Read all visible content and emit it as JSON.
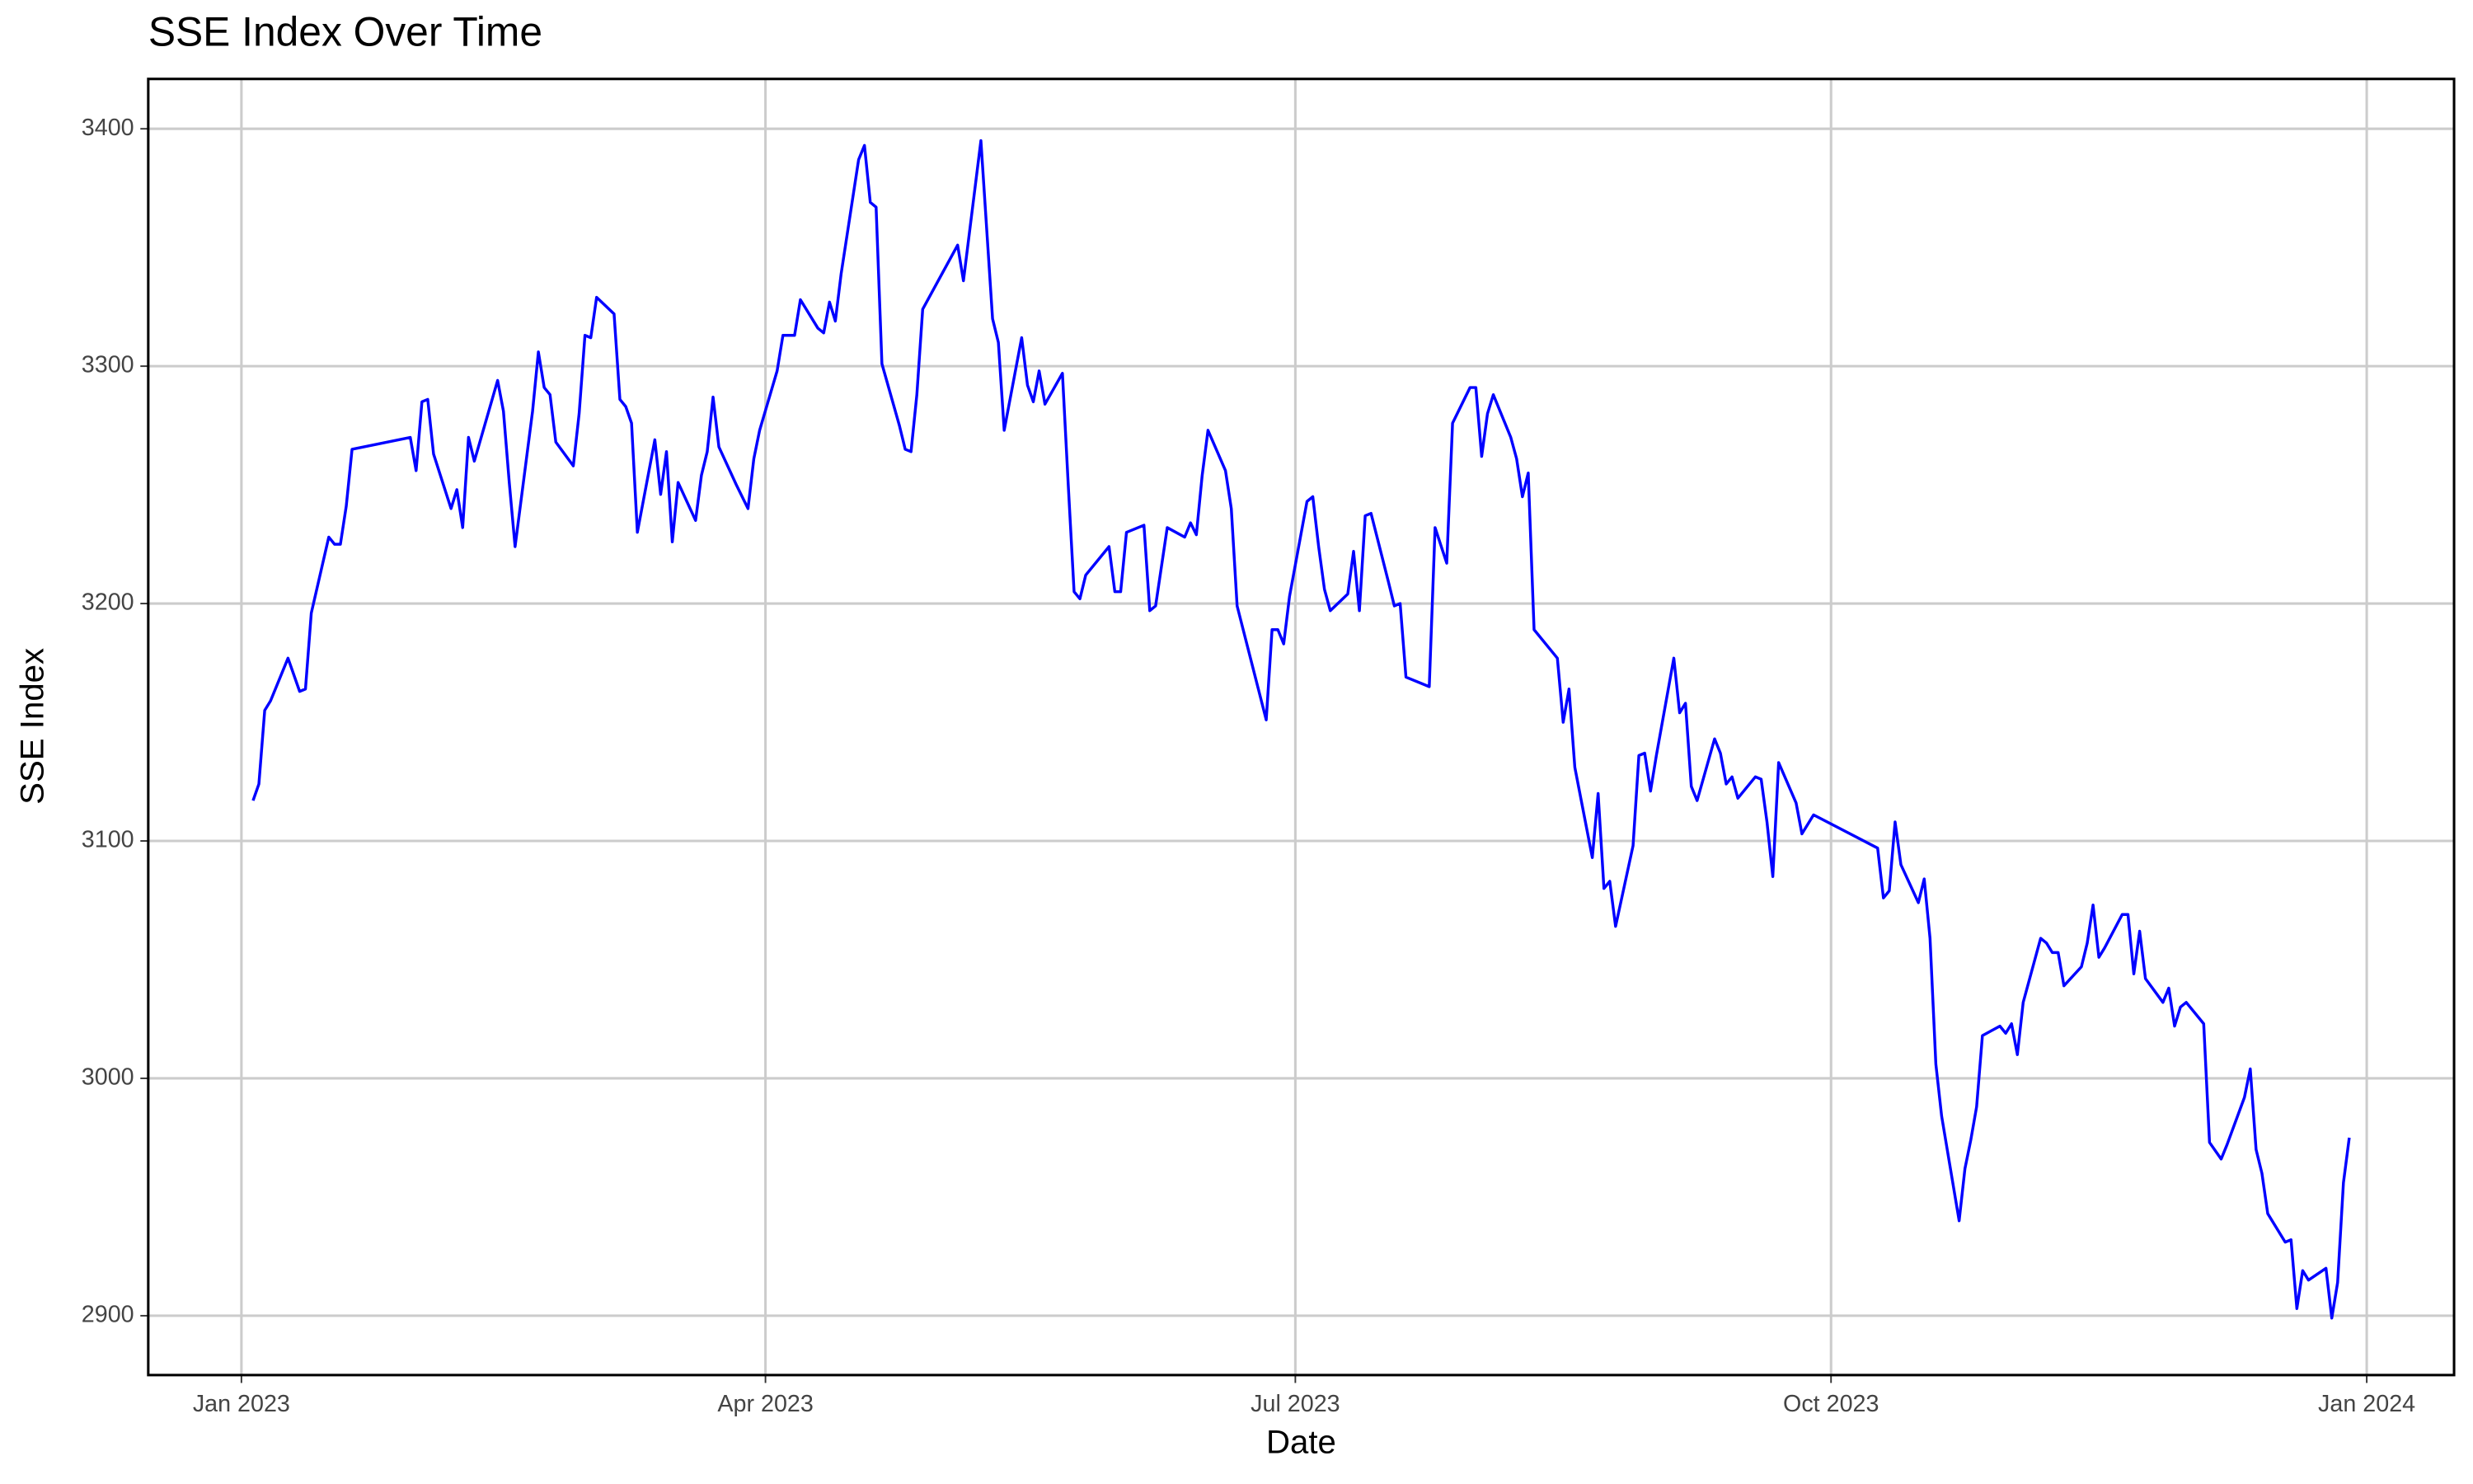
{
  "chart_data": {
    "type": "line",
    "title": "SSE Index Over Time",
    "x_label": "Date",
    "y_label": "SSE Index",
    "x": [
      "2023-01-03",
      "2023-01-04",
      "2023-01-05",
      "2023-01-06",
      "2023-01-09",
      "2023-01-11",
      "2023-01-12",
      "2023-01-13",
      "2023-01-16",
      "2023-01-17",
      "2023-01-18",
      "2023-01-19",
      "2023-01-20",
      "2023-01-30",
      "2023-01-31",
      "2023-02-01",
      "2023-02-02",
      "2023-02-03",
      "2023-02-06",
      "2023-02-07",
      "2023-02-08",
      "2023-02-09",
      "2023-02-10",
      "2023-02-14",
      "2023-02-15",
      "2023-02-16",
      "2023-02-17",
      "2023-02-20",
      "2023-02-21",
      "2023-02-22",
      "2023-02-23",
      "2023-02-24",
      "2023-02-27",
      "2023-02-28",
      "2023-03-01",
      "2023-03-02",
      "2023-03-03",
      "2023-03-06",
      "2023-03-07",
      "2023-03-08",
      "2023-03-09",
      "2023-03-10",
      "2023-03-13",
      "2023-03-14",
      "2023-03-15",
      "2023-03-16",
      "2023-03-17",
      "2023-03-20",
      "2023-03-21",
      "2023-03-22",
      "2023-03-23",
      "2023-03-24",
      "2023-03-27",
      "2023-03-29",
      "2023-03-30",
      "2023-03-31",
      "2023-04-03",
      "2023-04-04",
      "2023-04-06",
      "2023-04-07",
      "2023-04-10",
      "2023-04-11",
      "2023-04-12",
      "2023-04-13",
      "2023-04-14",
      "2023-04-17",
      "2023-04-18",
      "2023-04-19",
      "2023-04-20",
      "2023-04-21",
      "2023-04-24",
      "2023-04-25",
      "2023-04-26",
      "2023-04-27",
      "2023-04-28",
      "2023-05-04",
      "2023-05-05",
      "2023-05-08",
      "2023-05-10",
      "2023-05-11",
      "2023-05-12",
      "2023-05-15",
      "2023-05-16",
      "2023-05-17",
      "2023-05-18",
      "2023-05-19",
      "2023-05-22",
      "2023-05-23",
      "2023-05-24",
      "2023-05-25",
      "2023-05-26",
      "2023-05-30",
      "2023-05-31",
      "2023-06-01",
      "2023-06-02",
      "2023-06-05",
      "2023-06-06",
      "2023-06-07",
      "2023-06-09",
      "2023-06-12",
      "2023-06-13",
      "2023-06-14",
      "2023-06-15",
      "2023-06-16",
      "2023-06-19",
      "2023-06-20",
      "2023-06-21",
      "2023-06-26",
      "2023-06-27",
      "2023-06-28",
      "2023-06-29",
      "2023-06-30",
      "2023-07-03",
      "2023-07-04",
      "2023-07-05",
      "2023-07-06",
      "2023-07-07",
      "2023-07-10",
      "2023-07-11",
      "2023-07-12",
      "2023-07-13",
      "2023-07-14",
      "2023-07-17",
      "2023-07-18",
      "2023-07-19",
      "2023-07-20",
      "2023-07-24",
      "2023-07-25",
      "2023-07-27",
      "2023-07-28",
      "2023-07-31",
      "2023-08-01",
      "2023-08-02",
      "2023-08-03",
      "2023-08-04",
      "2023-08-07",
      "2023-08-08",
      "2023-08-09",
      "2023-08-10",
      "2023-08-11",
      "2023-08-14",
      "2023-08-15",
      "2023-08-16",
      "2023-08-17",
      "2023-08-18",
      "2023-08-21",
      "2023-08-22",
      "2023-08-23",
      "2023-08-24",
      "2023-08-25",
      "2023-08-28",
      "2023-08-29",
      "2023-08-30",
      "2023-08-31",
      "2023-09-01",
      "2023-09-04",
      "2023-09-05",
      "2023-09-06",
      "2023-09-07",
      "2023-09-08",
      "2023-09-11",
      "2023-09-12",
      "2023-09-13",
      "2023-09-14",
      "2023-09-15",
      "2023-09-18",
      "2023-09-19",
      "2023-09-20",
      "2023-09-21",
      "2023-09-22",
      "2023-09-25",
      "2023-09-26",
      "2023-09-28",
      "2023-10-09",
      "2023-10-10",
      "2023-10-11",
      "2023-10-12",
      "2023-10-13",
      "2023-10-16",
      "2023-10-17",
      "2023-10-18",
      "2023-10-19",
      "2023-10-20",
      "2023-10-23",
      "2023-10-24",
      "2023-10-25",
      "2023-10-26",
      "2023-10-27",
      "2023-10-30",
      "2023-10-31",
      "2023-11-01",
      "2023-11-02",
      "2023-11-03",
      "2023-11-06",
      "2023-11-07",
      "2023-11-08",
      "2023-11-09",
      "2023-11-10",
      "2023-11-13",
      "2023-11-14",
      "2023-11-15",
      "2023-11-16",
      "2023-11-17",
      "2023-11-20",
      "2023-11-21",
      "2023-11-22",
      "2023-11-23",
      "2023-11-24",
      "2023-11-27",
      "2023-11-28",
      "2023-11-29",
      "2023-11-30",
      "2023-12-01",
      "2023-12-04",
      "2023-12-05",
      "2023-12-07",
      "2023-12-08",
      "2023-12-11",
      "2023-12-12",
      "2023-12-13",
      "2023-12-14",
      "2023-12-15",
      "2023-12-18",
      "2023-12-19",
      "2023-12-20",
      "2023-12-21",
      "2023-12-22",
      "2023-12-25",
      "2023-12-26",
      "2023-12-27",
      "2023-12-28",
      "2023-12-29"
    ],
    "series": [
      {
        "name": "SSE Index",
        "color": "#0000ff",
        "values": [
          3117,
          3124,
          3155,
          3159,
          3177,
          3163,
          3164,
          3196,
          3228,
          3225,
          3225,
          3241,
          3265,
          3270,
          3256,
          3285,
          3286,
          3263,
          3240,
          3248,
          3232,
          3270,
          3260,
          3294,
          3281,
          3251,
          3224,
          3281,
          3306,
          3291,
          3288,
          3268,
          3258,
          3280,
          3313,
          3312,
          3329,
          3322,
          3286,
          3283,
          3276,
          3230,
          3269,
          3246,
          3264,
          3226,
          3251,
          3235,
          3254,
          3264,
          3287,
          3266,
          3250,
          3240,
          3261,
          3273,
          3298,
          3313,
          3313,
          3328,
          3316,
          3314,
          3327,
          3319,
          3339,
          3387,
          3393,
          3369,
          3367,
          3301,
          3275,
          3265,
          3264,
          3288,
          3324,
          3351,
          3336,
          3395,
          3320,
          3310,
          3273,
          3312,
          3292,
          3285,
          3298,
          3284,
          3297,
          3250,
          3205,
          3202,
          3212,
          3224,
          3205,
          3205,
          3230,
          3233,
          3197,
          3199,
          3232,
          3228,
          3234,
          3229,
          3254,
          3273,
          3256,
          3240,
          3199,
          3151,
          3189,
          3189,
          3183,
          3203,
          3243,
          3245,
          3224,
          3206,
          3197,
          3204,
          3222,
          3197,
          3237,
          3238,
          3209,
          3199,
          3200,
          3169,
          3165,
          3232,
          3217,
          3276,
          3291,
          3291,
          3262,
          3280,
          3288,
          3270,
          3261,
          3245,
          3255,
          3189,
          3180,
          3177,
          3150,
          3164,
          3131,
          3093,
          3120,
          3080,
          3083,
          3064,
          3098,
          3136,
          3137,
          3121,
          3136,
          3177,
          3154,
          3158,
          3123,
          3117,
          3143,
          3137,
          3124,
          3127,
          3118,
          3127,
          3126,
          3108,
          3085,
          3133,
          3116,
          3103,
          3111,
          3097,
          3076,
          3079,
          3108,
          3090,
          3074,
          3084,
          3059,
          3006,
          2984,
          2940,
          2962,
          2974,
          2988,
          3018,
          3022,
          3019,
          3023,
          3010,
          3032,
          3059,
          3057,
          3053,
          3053,
          3039,
          3047,
          3057,
          3073,
          3051,
          3055,
          3069,
          3069,
          3044,
          3062,
          3042,
          3032,
          3038,
          3022,
          3030,
          3032,
          3023,
          2973,
          2966,
          2972,
          2992,
          3004,
          2970,
          2960,
          2943,
          2931,
          2932,
          2903,
          2919,
          2915,
          2920,
          2899,
          2914,
          2956,
          2975
        ]
      }
    ],
    "xlim": [
      "2022-12-16",
      "2024-01-16"
    ],
    "xticks": [
      {
        "value": "2023-01-01",
        "label": "Jan 2023"
      },
      {
        "value": "2023-04-01",
        "label": "Apr 2023"
      },
      {
        "value": "2023-07-01",
        "label": "Jul 2023"
      },
      {
        "value": "2023-10-01",
        "label": "Oct 2023"
      },
      {
        "value": "2024-01-01",
        "label": "Jan 2024"
      }
    ],
    "ylim": [
      2875,
      3421
    ],
    "yticks": [
      2900,
      3000,
      3100,
      3200,
      3300,
      3400
    ],
    "grid": true
  }
}
